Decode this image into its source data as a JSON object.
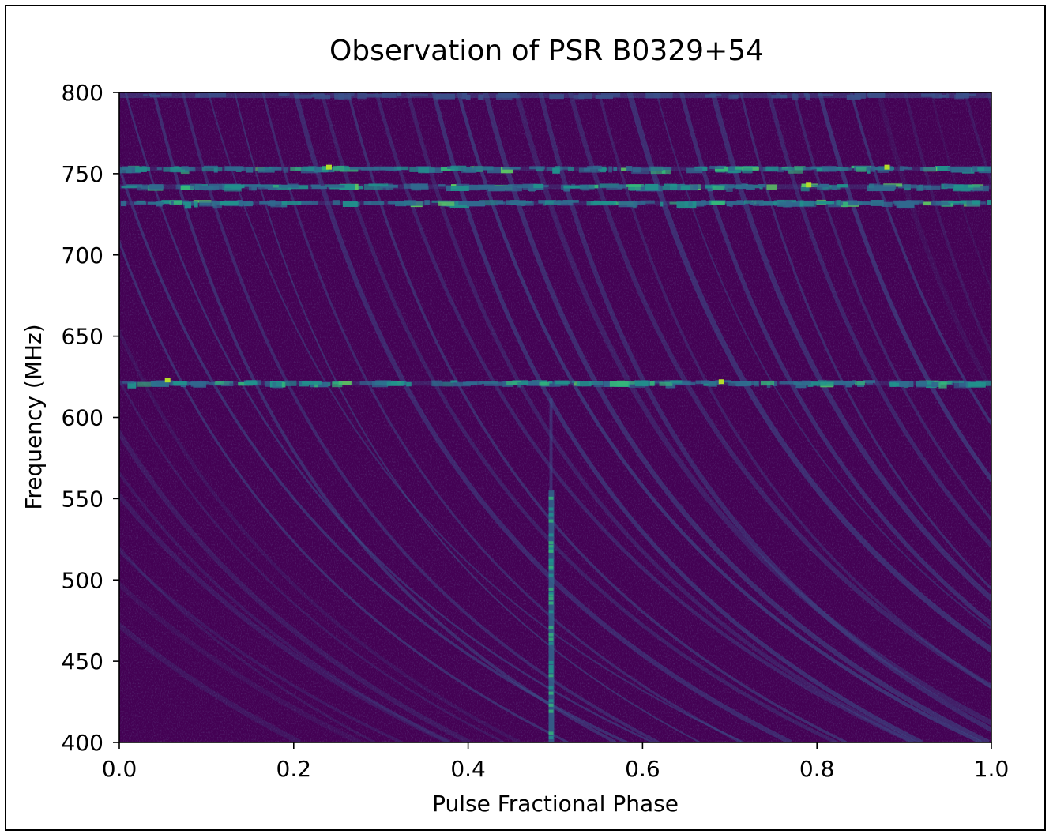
{
  "chart_data": {
    "type": "heatmap",
    "title": "Observation of PSR B0329+54",
    "xlabel": "Pulse Fractional Phase",
    "ylabel": "Frequency (MHz)",
    "xlim": [
      0.0,
      1.0
    ],
    "ylim": [
      400,
      800
    ],
    "x_ticks": [
      "0.0",
      "0.2",
      "0.4",
      "0.6",
      "0.8",
      "1.0"
    ],
    "y_ticks": [
      "400",
      "450",
      "500",
      "550",
      "600",
      "650",
      "700",
      "750",
      "800"
    ],
    "colormap": "viridis",
    "background_color": "#440154",
    "features": {
      "pulse_phase": 0.495,
      "pulse_freq_range": [
        400,
        555
      ],
      "rfi_bands_mhz": [
        621,
        732,
        742,
        753,
        798
      ]
    }
  }
}
